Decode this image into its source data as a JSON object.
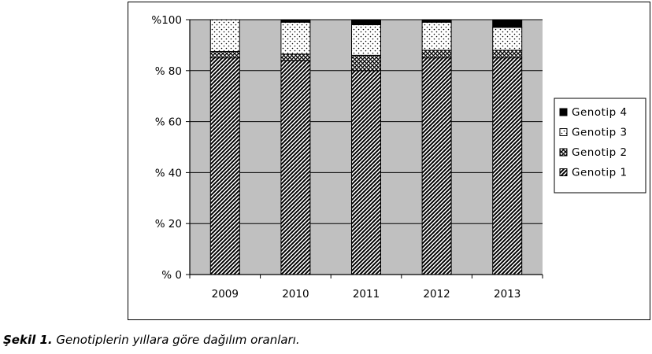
{
  "chart_data": {
    "type": "bar",
    "stacked": true,
    "categories": [
      "2009",
      "2010",
      "2011",
      "2012",
      "2013"
    ],
    "series": [
      {
        "name": "Genotip 1",
        "values": [
          85,
          84,
          80,
          85,
          85
        ],
        "pattern": "diagonal-hatch"
      },
      {
        "name": "Genotip 2",
        "values": [
          2.5,
          2.5,
          6,
          3,
          3
        ],
        "pattern": "cross-hatch"
      },
      {
        "name": "Genotip 3",
        "values": [
          12.5,
          12.5,
          12,
          11,
          9
        ],
        "pattern": "dots"
      },
      {
        "name": "Genotip 4",
        "values": [
          0,
          1,
          2,
          1,
          3
        ],
        "pattern": "solid"
      }
    ],
    "ylim": [
      0,
      100
    ],
    "yticks": [
      0,
      20,
      40,
      60,
      80,
      100
    ],
    "ytick_labels": [
      "% 0",
      "% 20",
      "% 40",
      "% 60",
      "% 80",
      "%100"
    ],
    "grid": true,
    "legend_position": "right",
    "plot_background": "#c0c0c0",
    "title": "",
    "xlabel": "",
    "ylabel": ""
  },
  "caption": {
    "label": "Şekil 1.",
    "text": " Genotiplerin yıllara göre dağılım oranları."
  }
}
